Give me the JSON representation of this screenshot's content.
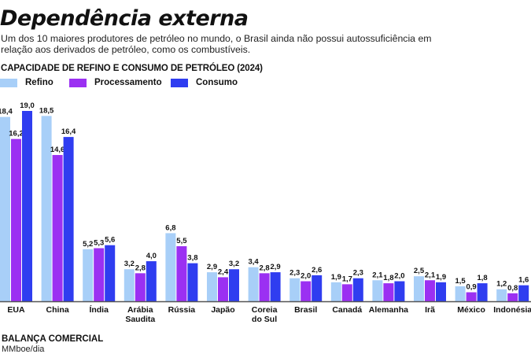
{
  "header": {
    "title": "Dependência externa",
    "subtitle": "Um dos 10 maiores produtores de petróleo no mundo, o Brasil ainda não possui autossuficiência em relação aos derivados de petróleo, como os combustíveis."
  },
  "footer": {
    "section_title": "BALANÇA COMERCIAL",
    "unit": "MMboe/dia"
  },
  "chart_data": {
    "type": "bar",
    "title": "CAPACIDADE DE REFINO E CONSUMO DE PETRÓLEO (2024)",
    "xlabel": "",
    "ylabel": "MMboe/dia",
    "ylim": [
      0,
      19.0
    ],
    "grid": false,
    "legend_position": "top-left",
    "categories": [
      "EUA",
      "China",
      "Índia",
      "Arábia Saudita",
      "Rússia",
      "Japão",
      "Coreia do Sul",
      "Brasil",
      "Canadá",
      "Alemanha",
      "Irã",
      "México",
      "Indonésia"
    ],
    "category_lines": [
      [
        "EUA"
      ],
      [
        "China"
      ],
      [
        "Índia"
      ],
      [
        "Arábia",
        "Saudita"
      ],
      [
        "Rússia"
      ],
      [
        "Japão"
      ],
      [
        "Coreia",
        "do Sul"
      ],
      [
        "Brasil"
      ],
      [
        "Canadá"
      ],
      [
        "Alemanha"
      ],
      [
        "Irã"
      ],
      [
        "México"
      ],
      [
        "Indonésia"
      ]
    ],
    "series": [
      {
        "name": "Refino",
        "color": "#a8cff8",
        "values": [
          18.4,
          18.5,
          5.2,
          3.2,
          6.8,
          2.9,
          3.4,
          2.3,
          1.9,
          2.1,
          2.5,
          1.5,
          1.2
        ]
      },
      {
        "name": "Processamento",
        "color": "#9b30f2",
        "values": [
          16.2,
          14.6,
          5.3,
          2.8,
          5.5,
          2.4,
          2.8,
          2.0,
          1.7,
          1.8,
          2.1,
          0.9,
          0.8
        ]
      },
      {
        "name": "Consumo",
        "color": "#2f3df0",
        "values": [
          19.0,
          16.4,
          5.6,
          4.0,
          3.8,
          3.2,
          2.9,
          2.6,
          2.3,
          2.0,
          1.9,
          1.8,
          1.6
        ]
      }
    ],
    "axis_color": "#555555"
  }
}
